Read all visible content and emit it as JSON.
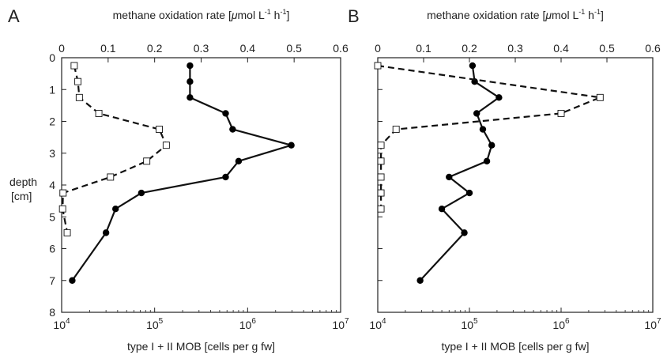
{
  "chart_data": [
    {
      "panel": "A",
      "type": "line",
      "top_axis": {
        "label_pre": "methane oxidation rate [",
        "label_mu": "μ",
        "label_mid1": "mol L",
        "label_exp1": "-1",
        "label_mid2": " h",
        "label_exp2": "-1",
        "label_post": "]",
        "range": [
          0,
          0.6
        ],
        "ticks": [
          "0",
          "0.1",
          "0.2",
          "0.3",
          "0.4",
          "0.5",
          "0.6"
        ],
        "scale": "linear"
      },
      "bottom_axis": {
        "label": "type I + II MOB [cells per g fw]",
        "range_exp": [
          4,
          7
        ],
        "tick_base": "10",
        "tick_exps": [
          "4",
          "5",
          "6",
          "7"
        ],
        "scale": "log"
      },
      "y_axis": {
        "label_line1": "depth",
        "label_line2": "[cm]",
        "range": [
          0,
          8
        ],
        "ticks": [
          "0",
          "1",
          "2",
          "3",
          "4",
          "5",
          "6",
          "7",
          "8"
        ],
        "inverted": true
      },
      "series": [
        {
          "style": "solid-filled-circles",
          "x_axis": "bottom",
          "points": [
            {
              "depth": 0.25,
              "value": 240000
            },
            {
              "depth": 0.75,
              "value": 240000
            },
            {
              "depth": 1.25,
              "value": 240000
            },
            {
              "depth": 1.75,
              "value": 580000
            },
            {
              "depth": 2.25,
              "value": 690000
            },
            {
              "depth": 2.75,
              "value": 2950000
            },
            {
              "depth": 3.25,
              "value": 800000
            },
            {
              "depth": 3.75,
              "value": 580000
            },
            {
              "depth": 4.25,
              "value": 72000
            },
            {
              "depth": 4.75,
              "value": 38000
            },
            {
              "depth": 5.5,
              "value": 30000
            },
            {
              "depth": 7.0,
              "value": 13000
            }
          ]
        },
        {
          "style": "dashed-open-squares",
          "x_axis": "top",
          "points": [
            {
              "depth": 0.25,
              "value": 0.027
            },
            {
              "depth": 0.75,
              "value": 0.035
            },
            {
              "depth": 1.25,
              "value": 0.038
            },
            {
              "depth": 1.75,
              "value": 0.08
            },
            {
              "depth": 2.25,
              "value": 0.21
            },
            {
              "depth": 2.75,
              "value": 0.225
            },
            {
              "depth": 3.25,
              "value": 0.183
            },
            {
              "depth": 3.75,
              "value": 0.105
            },
            {
              "depth": 4.25,
              "value": 0.003
            },
            {
              "depth": 4.75,
              "value": 0.002
            },
            {
              "depth": 5.5,
              "value": 0.012
            }
          ]
        }
      ]
    },
    {
      "panel": "B",
      "type": "line",
      "top_axis": {
        "label_pre": "methane oxidation rate [",
        "label_mu": "μ",
        "label_mid1": "mol L",
        "label_exp1": "-1",
        "label_mid2": " h",
        "label_exp2": "-1",
        "label_post": "]",
        "range": [
          0,
          0.6
        ],
        "ticks": [
          "0",
          "0.1",
          "0.2",
          "0.3",
          "0.4",
          "0.5",
          "0.6"
        ],
        "scale": "linear"
      },
      "bottom_axis": {
        "label": "type I + II MOB [cells per g fw]",
        "range_exp": [
          4,
          7
        ],
        "tick_base": "10",
        "tick_exps": [
          "4",
          "5",
          "6",
          "7"
        ],
        "scale": "log"
      },
      "y_axis": {
        "range": [
          0,
          8
        ],
        "inverted": true
      },
      "series": [
        {
          "style": "solid-filled-circles",
          "x_axis": "bottom",
          "points": [
            {
              "depth": 0.25,
              "value": 108000
            },
            {
              "depth": 0.75,
              "value": 114000
            },
            {
              "depth": 1.25,
              "value": 210000
            },
            {
              "depth": 1.75,
              "value": 120000
            },
            {
              "depth": 2.25,
              "value": 140000
            },
            {
              "depth": 2.75,
              "value": 175000
            },
            {
              "depth": 3.25,
              "value": 155000
            },
            {
              "depth": 3.75,
              "value": 60000
            },
            {
              "depth": 4.25,
              "value": 100000
            },
            {
              "depth": 4.75,
              "value": 50000
            },
            {
              "depth": 5.5,
              "value": 88000
            },
            {
              "depth": 7.0,
              "value": 29000
            }
          ]
        },
        {
          "style": "dashed-open-squares",
          "x_axis": "top",
          "points": [
            {
              "depth": 0.25,
              "value": 0.0
            },
            {
              "depth": 1.25,
              "value": 0.485
            },
            {
              "depth": 1.75,
              "value": 0.4
            },
            {
              "depth": 2.25,
              "value": 0.04
            },
            {
              "depth": 2.75,
              "value": 0.007
            },
            {
              "depth": 3.25,
              "value": 0.007
            },
            {
              "depth": 3.75,
              "value": 0.007
            },
            {
              "depth": 4.25,
              "value": 0.007
            },
            {
              "depth": 4.75,
              "value": 0.007
            }
          ]
        }
      ]
    }
  ]
}
